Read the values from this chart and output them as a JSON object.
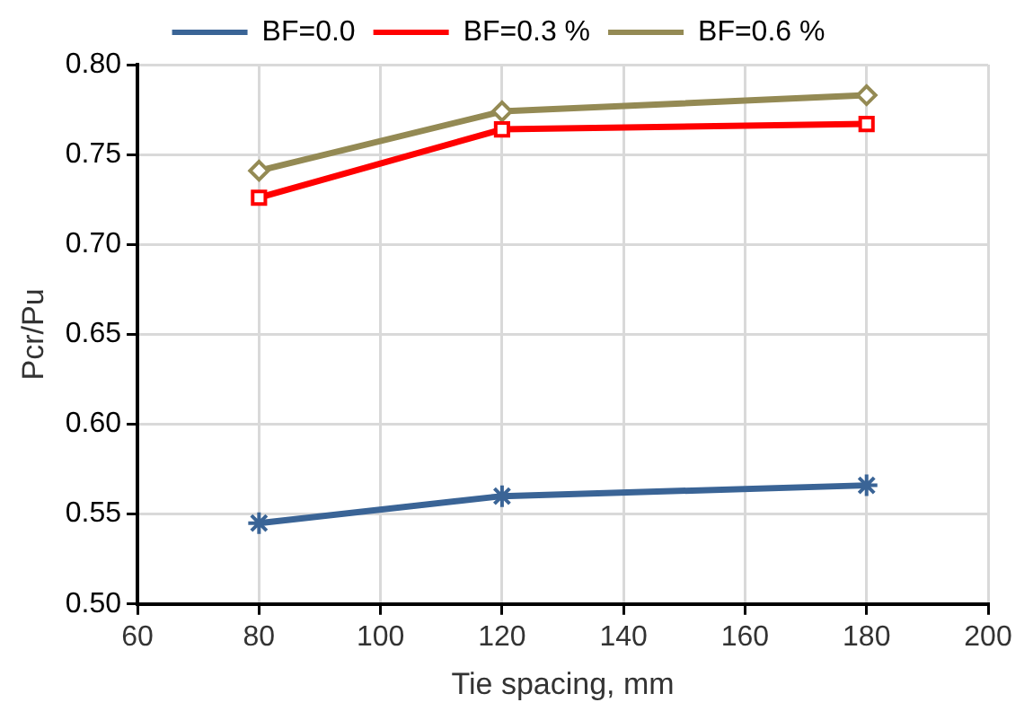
{
  "chart_data": {
    "type": "line",
    "xlabel": "Tie spacing, mm",
    "ylabel": "Pcr/Pu",
    "x": [
      80,
      120,
      180
    ],
    "series": [
      {
        "name": "BF=0.0",
        "color": "#3a6496",
        "marker": "cross",
        "values": [
          0.545,
          0.56,
          0.566
        ]
      },
      {
        "name": "BF=0.3 %",
        "color": "#ff0000",
        "marker": "square",
        "values": [
          0.726,
          0.764,
          0.767
        ]
      },
      {
        "name": "BF=0.6 %",
        "color": "#948a54",
        "marker": "diamond",
        "values": [
          0.741,
          0.774,
          0.783
        ]
      }
    ],
    "xlim": [
      60,
      200
    ],
    "xticks": [
      60,
      80,
      100,
      120,
      140,
      160,
      180,
      200
    ],
    "ylim": [
      0.5,
      0.8
    ],
    "yticks": [
      {
        "value": 0.5,
        "label": "0.50"
      },
      0.55,
      {
        "value": 0.6,
        "label": "0.60"
      },
      0.65,
      {
        "value": 0.7,
        "label": "0.70"
      },
      0.75,
      {
        "value": 0.8,
        "label": "0.80"
      }
    ],
    "grid": true,
    "legend": "top",
    "line_style": "solid"
  }
}
